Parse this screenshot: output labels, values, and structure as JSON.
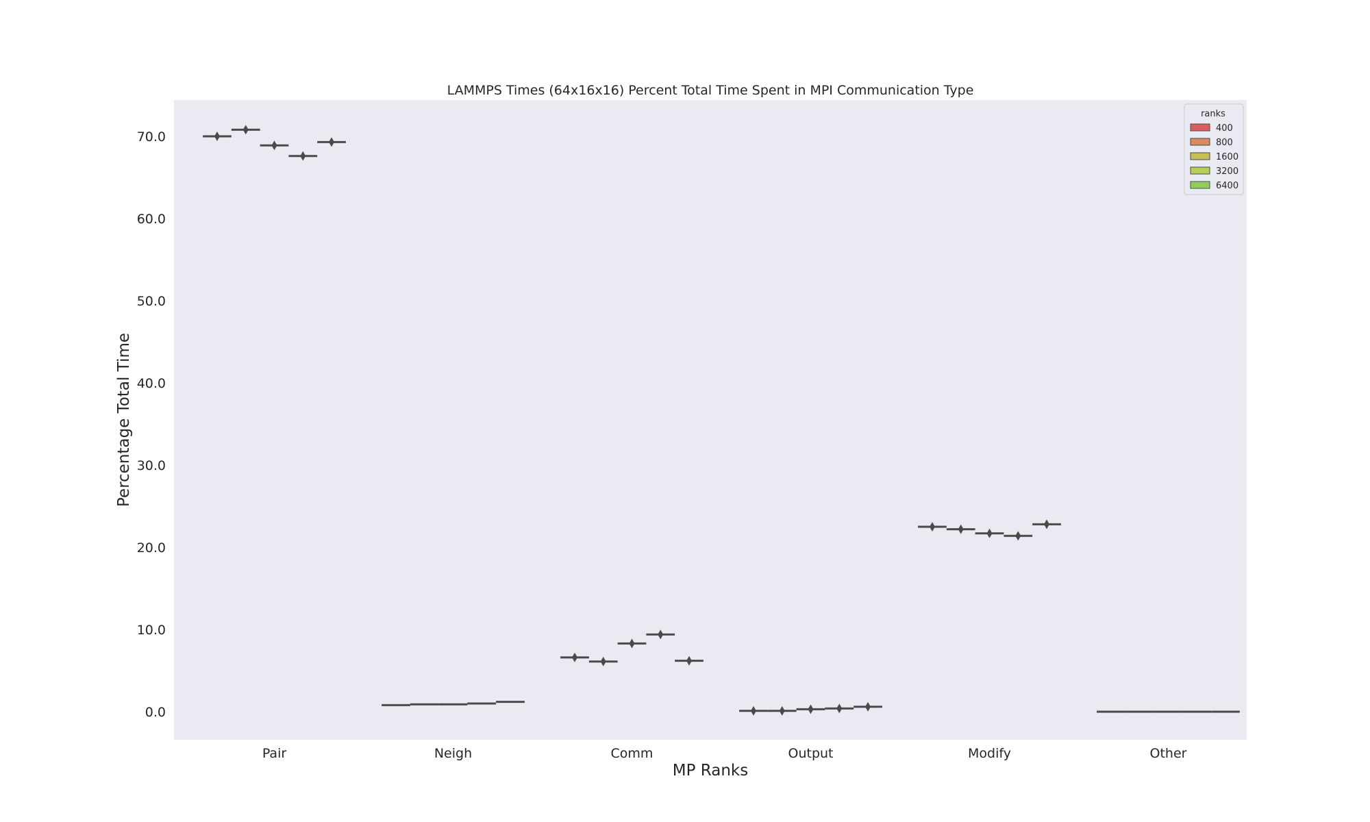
{
  "chart_data": {
    "type": "violin",
    "title": "LAMMPS Times (64x16x16) Percent Total Time Spent in MPI Communication Type",
    "xlabel": "MP Ranks",
    "ylabel": "Percentage Total Time",
    "categories": [
      "Pair",
      "Neigh",
      "Comm",
      "Output",
      "Modify",
      "Other"
    ],
    "ylim": [
      -3.5,
      74.5
    ],
    "yticks": [
      "0.0",
      "10.0",
      "20.0",
      "30.0",
      "40.0",
      "50.0",
      "60.0",
      "70.0"
    ],
    "grid": false,
    "background": "#eaeaf2",
    "legend": {
      "title": "ranks",
      "position": "top-right"
    },
    "series": [
      {
        "name": "400",
        "color": "#d95f5f",
        "values": [
          70.0,
          0.8,
          6.6,
          0.1,
          22.5,
          0.0
        ]
      },
      {
        "name": "800",
        "color": "#d98b5f",
        "values": [
          70.8,
          0.9,
          6.1,
          0.1,
          22.2,
          0.0
        ]
      },
      {
        "name": "1600",
        "color": "#c9bf5a",
        "values": [
          68.9,
          0.9,
          8.3,
          0.3,
          21.7,
          0.0
        ]
      },
      {
        "name": "3200",
        "color": "#b5cf5a",
        "values": [
          67.6,
          1.0,
          9.4,
          0.4,
          21.4,
          0.0
        ]
      },
      {
        "name": "6400",
        "color": "#8fcf5a",
        "values": [
          69.3,
          1.2,
          6.2,
          0.6,
          22.8,
          0.0
        ]
      }
    ]
  }
}
